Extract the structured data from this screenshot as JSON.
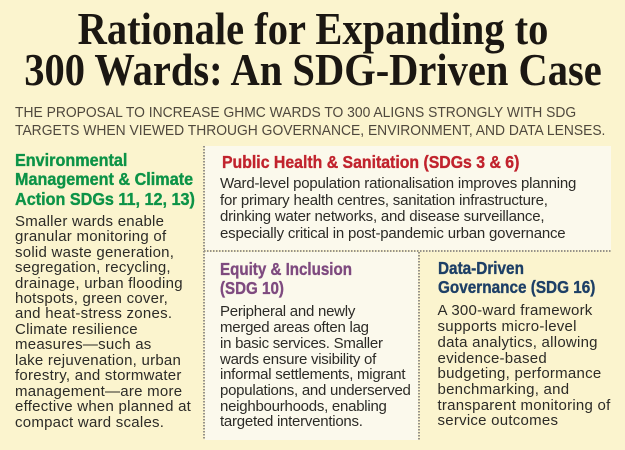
{
  "colors": {
    "page_background": "#fbf4ce",
    "panel_background": "#fbf9ec",
    "title": "#1b1712",
    "subtitle": "#4f483d",
    "heading_green": "#0c9347",
    "heading_red": "#c1232d",
    "heading_purple": "#7e4a7f",
    "heading_navy": "#1d3f66",
    "body_text": "#2c2b27",
    "dotted_border": "#96928a"
  },
  "header": {
    "title": "Rationale for Expanding to\n300 Wards: An SDG-Driven Case",
    "subtitle": "THE PROPOSAL TO INCREASE GHMC WARDS TO 300 ALIGNS STRONGLY WITH SDG\nTARGETS WHEN VIEWED THROUGH GOVERNANCE, ENVIRONMENT, AND DATA LENSES."
  },
  "sections": {
    "environment": {
      "heading": "Environmental\nManagement & Climate\nAction SDGs 11, 12, 13)",
      "body": "Smaller wards enable\ngranular monitoring of\nsolid waste generation,\nsegregation, recycling,\ndrainage, urban flooding\nhotspots, green cover,\nand heat-stress zones.\nClimate resilience\nmeasures—such as\nlake rejuvenation, urban\nforestry, and stormwater\nmanagement—are more\neffective when planned at\ncompact ward scales."
    },
    "public_health": {
      "heading": "Public Health & Sanitation (SDGs 3 & 6)",
      "body": "Ward-level population rationalisation improves planning\nfor primary health centres, sanitation infrastructure,\ndrinking water networks, and disease surveillance,\nespecially critical in post-pandemic urban governance"
    },
    "equity": {
      "heading": "Equity & Inclusion\n(SDG 10)",
      "body": "Peripheral and newly\nmerged areas often lag\nin basic services. Smaller\nwards ensure visibility of\ninformal settlements, migrant\npopulations, and underserved\nneighbourhoods, enabling\ntargeted interventions."
    },
    "data_governance": {
      "heading": "Data-Driven\nGovernance (SDG 16)",
      "body": "A 300-ward framework\nsupports micro-level\ndata analytics, allowing\nevidence-based\nbudgeting, performance\nbenchmarking, and\ntransparent monitoring of\nservice outcomes"
    }
  }
}
